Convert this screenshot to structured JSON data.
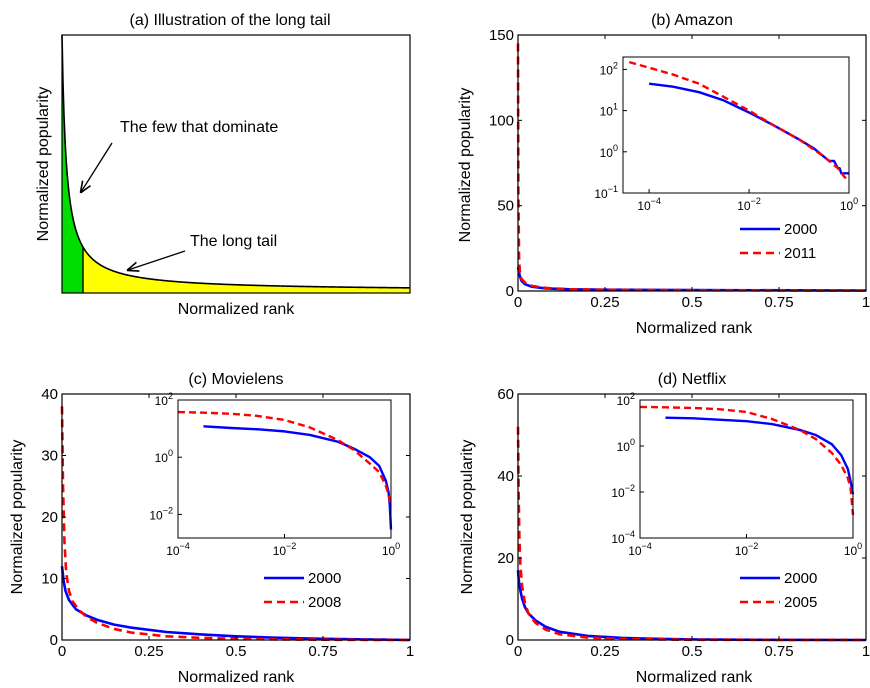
{
  "chart_data": [
    {
      "id": "a",
      "type": "area",
      "title": "(a) Illustration of the long tail",
      "xlabel": "Normalized rank",
      "ylabel": "Normalized popularity",
      "annotations": [
        "The few that dominate",
        "The long tail"
      ],
      "colors": {
        "head": "#00dd00",
        "tail": "#ffff00",
        "curve": "#000000"
      }
    },
    {
      "id": "b",
      "type": "line",
      "title": "(b) Amazon",
      "xlabel": "Normalized rank",
      "ylabel": "Normalized popularity",
      "xlim": [
        0,
        1
      ],
      "ylim": [
        0,
        150
      ],
      "xticks": [
        {
          "v": 0,
          "t": "0"
        },
        {
          "v": 0.25,
          "t": "0.25"
        },
        {
          "v": 0.5,
          "t": "0.5"
        },
        {
          "v": 0.75,
          "t": "0.75"
        },
        {
          "v": 1,
          "t": "1"
        }
      ],
      "yticks": [
        {
          "v": 0,
          "t": "0"
        },
        {
          "v": 50,
          "t": "50"
        },
        {
          "v": 100,
          "t": "100"
        },
        {
          "v": 150,
          "t": "150"
        }
      ],
      "legend": "bottom-right",
      "series": [
        {
          "name": "2000",
          "color": "#0000ff",
          "dash": "solid",
          "x": [
            0,
            0.005,
            0.01,
            0.02,
            0.04,
            0.08,
            0.15,
            0.25,
            0.4,
            0.6,
            0.8,
            1
          ],
          "y": [
            14,
            9,
            6,
            4,
            2.5,
            1.5,
            1,
            0.8,
            0.6,
            0.5,
            0.4,
            0.3
          ]
        },
        {
          "name": "2011",
          "color": "#ff0000",
          "dash": "dashed",
          "x": [
            0,
            0.001,
            0.003,
            0.005,
            0.01,
            0.02,
            0.04,
            0.08,
            0.15,
            0.25,
            0.4,
            0.6,
            0.8,
            1
          ],
          "y": [
            145,
            60,
            20,
            12,
            7,
            5,
            3,
            1.8,
            1,
            0.7,
            0.5,
            0.4,
            0.3,
            0.2
          ]
        }
      ],
      "inset": {
        "xscale": "log",
        "yscale": "log",
        "xlim": [
          3e-05,
          1
        ],
        "ylim": [
          0.1,
          200
        ],
        "xticks": [
          {
            "v": 0.0001,
            "b": "10",
            "e": "−4"
          },
          {
            "v": 0.01,
            "b": "10",
            "e": "−2"
          },
          {
            "v": 1,
            "b": "10",
            "e": "0"
          }
        ],
        "yticks": [
          {
            "v": 0.1,
            "b": "10",
            "e": "−1"
          },
          {
            "v": 1,
            "b": "10",
            "e": "0"
          },
          {
            "v": 10,
            "b": "10",
            "e": "1"
          },
          {
            "v": 100,
            "b": "10",
            "e": "2"
          }
        ],
        "series": [
          {
            "name": "2000",
            "color": "#0000ff",
            "dash": "solid",
            "x": [
              0.0001,
              0.0003,
              0.001,
              0.003,
              0.01,
              0.03,
              0.1,
              0.2,
              0.3,
              0.4,
              0.5,
              0.6,
              0.65,
              0.7,
              1
            ],
            "y": [
              45,
              38,
              28,
              18,
              9,
              4.5,
              2,
              1.2,
              0.8,
              0.6,
              0.6,
              0.4,
              0.4,
              0.3,
              0.3
            ]
          },
          {
            "name": "2011",
            "color": "#ff0000",
            "dash": "dashed",
            "x": [
              4e-05,
              0.0001,
              0.0003,
              0.001,
              0.003,
              0.01,
              0.03,
              0.1,
              0.3,
              0.6,
              0.8,
              0.9
            ],
            "y": [
              150,
              110,
              75,
              45,
              22,
              10,
              4.5,
              2,
              0.8,
              0.4,
              0.25,
              0.22
            ]
          }
        ]
      }
    },
    {
      "id": "c",
      "type": "line",
      "title": "(c) Movielens",
      "xlabel": "Normalized rank",
      "ylabel": "Normalized popularity",
      "xlim": [
        0,
        1
      ],
      "ylim": [
        0,
        40
      ],
      "xticks": [
        {
          "v": 0,
          "t": "0"
        },
        {
          "v": 0.25,
          "t": "0.25"
        },
        {
          "v": 0.5,
          "t": "0.5"
        },
        {
          "v": 0.75,
          "t": "0.75"
        },
        {
          "v": 1,
          "t": "1"
        }
      ],
      "yticks": [
        {
          "v": 0,
          "t": "0"
        },
        {
          "v": 10,
          "t": "10"
        },
        {
          "v": 20,
          "t": "20"
        },
        {
          "v": 30,
          "t": "30"
        },
        {
          "v": 40,
          "t": "40"
        }
      ],
      "legend": "bottom-right",
      "series": [
        {
          "name": "2000",
          "color": "#0000ff",
          "dash": "solid",
          "x": [
            0,
            0.005,
            0.01,
            0.02,
            0.04,
            0.07,
            0.1,
            0.15,
            0.2,
            0.3,
            0.4,
            0.5,
            0.6,
            0.7,
            0.8,
            0.9,
            1
          ],
          "y": [
            12,
            9.5,
            8,
            6.5,
            5,
            4,
            3.3,
            2.5,
            2,
            1.3,
            0.9,
            0.6,
            0.4,
            0.25,
            0.15,
            0.08,
            0
          ]
        },
        {
          "name": "2008",
          "color": "#ff0000",
          "dash": "dashed",
          "x": [
            0,
            0.003,
            0.007,
            0.012,
            0.02,
            0.03,
            0.05,
            0.07,
            0.1,
            0.15,
            0.2,
            0.3,
            0.4,
            0.5,
            0.6,
            0.8,
            1
          ],
          "y": [
            38,
            25,
            16,
            11,
            8,
            6.3,
            4.8,
            3.8,
            2.8,
            1.8,
            1.2,
            0.6,
            0.35,
            0.2,
            0.1,
            0.03,
            0
          ]
        }
      ],
      "inset": {
        "xscale": "log",
        "yscale": "log",
        "xlim": [
          0.0001,
          1
        ],
        "ylim": [
          0.0015,
          100
        ],
        "xticks": [
          {
            "v": 0.0001,
            "b": "10",
            "e": "−4"
          },
          {
            "v": 0.01,
            "b": "10",
            "e": "−2"
          },
          {
            "v": 1,
            "b": "10",
            "e": "0"
          }
        ],
        "yticks": [
          {
            "v": 0.01,
            "b": "10",
            "e": "−2"
          },
          {
            "v": 1,
            "b": "10",
            "e": "0"
          },
          {
            "v": 100,
            "b": "10",
            "e": "2"
          }
        ],
        "series": [
          {
            "name": "2000",
            "color": "#0000ff",
            "dash": "solid",
            "x": [
              0.0003,
              0.001,
              0.003,
              0.01,
              0.03,
              0.1,
              0.2,
              0.4,
              0.6,
              0.8,
              0.9,
              0.95,
              1
            ],
            "y": [
              12,
              10.5,
              9.5,
              8,
              6,
              3.5,
              2,
              1,
              0.5,
              0.15,
              0.06,
              0.02,
              0.003
            ]
          },
          {
            "name": "2008",
            "color": "#ff0000",
            "dash": "dashed",
            "x": [
              0.0001,
              0.0003,
              0.001,
              0.003,
              0.01,
              0.03,
              0.1,
              0.2,
              0.4,
              0.6,
              0.8,
              0.9,
              1
            ],
            "y": [
              38,
              36,
              33,
              28,
              20,
              11,
              4,
              1.8,
              0.6,
              0.3,
              0.1,
              0.05,
              0.02
            ]
          }
        ]
      }
    },
    {
      "id": "d",
      "type": "line",
      "title": "(d) Netflix",
      "xlabel": "Normalized rank",
      "ylabel": "Normalized popularity",
      "xlim": [
        0,
        1
      ],
      "ylim": [
        0,
        60
      ],
      "xticks": [
        {
          "v": 0,
          "t": "0"
        },
        {
          "v": 0.25,
          "t": "0.25"
        },
        {
          "v": 0.5,
          "t": "0.5"
        },
        {
          "v": 0.75,
          "t": "0.75"
        },
        {
          "v": 1,
          "t": "1"
        }
      ],
      "yticks": [
        {
          "v": 0,
          "t": "0"
        },
        {
          "v": 20,
          "t": "20"
        },
        {
          "v": 40,
          "t": "40"
        },
        {
          "v": 60,
          "t": "60"
        }
      ],
      "legend": "bottom-right",
      "series": [
        {
          "name": "2000",
          "color": "#0000ff",
          "dash": "solid",
          "x": [
            0,
            0.003,
            0.007,
            0.012,
            0.02,
            0.03,
            0.05,
            0.08,
            0.12,
            0.2,
            0.3,
            0.4,
            0.5,
            0.7,
            1
          ],
          "y": [
            17,
            14,
            12,
            10,
            8,
            6.5,
            4.8,
            3.2,
            2,
            1,
            0.5,
            0.3,
            0.15,
            0.05,
            0
          ]
        },
        {
          "name": "2005",
          "color": "#ff0000",
          "dash": "dashed",
          "x": [
            0,
            0.002,
            0.004,
            0.007,
            0.012,
            0.02,
            0.03,
            0.05,
            0.08,
            0.12,
            0.2,
            0.3,
            0.5,
            1
          ],
          "y": [
            52,
            35,
            25,
            18,
            13,
            9,
            6.5,
            4.2,
            2.5,
            1.4,
            0.6,
            0.25,
            0.05,
            0
          ]
        }
      ],
      "inset": {
        "xscale": "log",
        "yscale": "log",
        "xlim": [
          0.0001,
          1
        ],
        "ylim": [
          0.0001,
          100
        ],
        "xticks": [
          {
            "v": 0.0001,
            "b": "10",
            "e": "−4"
          },
          {
            "v": 0.01,
            "b": "10",
            "e": "−2"
          },
          {
            "v": 1,
            "b": "10",
            "e": "0"
          }
        ],
        "yticks": [
          {
            "v": 0.0001,
            "b": "10",
            "e": "−4"
          },
          {
            "v": 0.01,
            "b": "10",
            "e": "−2"
          },
          {
            "v": 1,
            "b": "10",
            "e": "0"
          },
          {
            "v": 100,
            "b": "10",
            "e": "2"
          }
        ],
        "series": [
          {
            "name": "2000",
            "color": "#0000ff",
            "dash": "solid",
            "x": [
              0.0003,
              0.001,
              0.003,
              0.01,
              0.03,
              0.1,
              0.2,
              0.4,
              0.6,
              0.8,
              0.9,
              0.95,
              1
            ],
            "y": [
              17,
              16,
              14,
              12,
              9,
              5,
              3,
              1.2,
              0.4,
              0.1,
              0.03,
              0.015,
              0.008
            ]
          },
          {
            "name": "2005",
            "color": "#ff0000",
            "dash": "dashed",
            "x": [
              0.0001,
              0.0003,
              0.001,
              0.003,
              0.01,
              0.03,
              0.1,
              0.2,
              0.4,
              0.6,
              0.8,
              0.9,
              1
            ],
            "y": [
              50,
              48,
              45,
              40,
              30,
              15,
              5,
              2,
              0.5,
              0.15,
              0.04,
              0.015,
              0.001
            ]
          }
        ]
      }
    }
  ]
}
